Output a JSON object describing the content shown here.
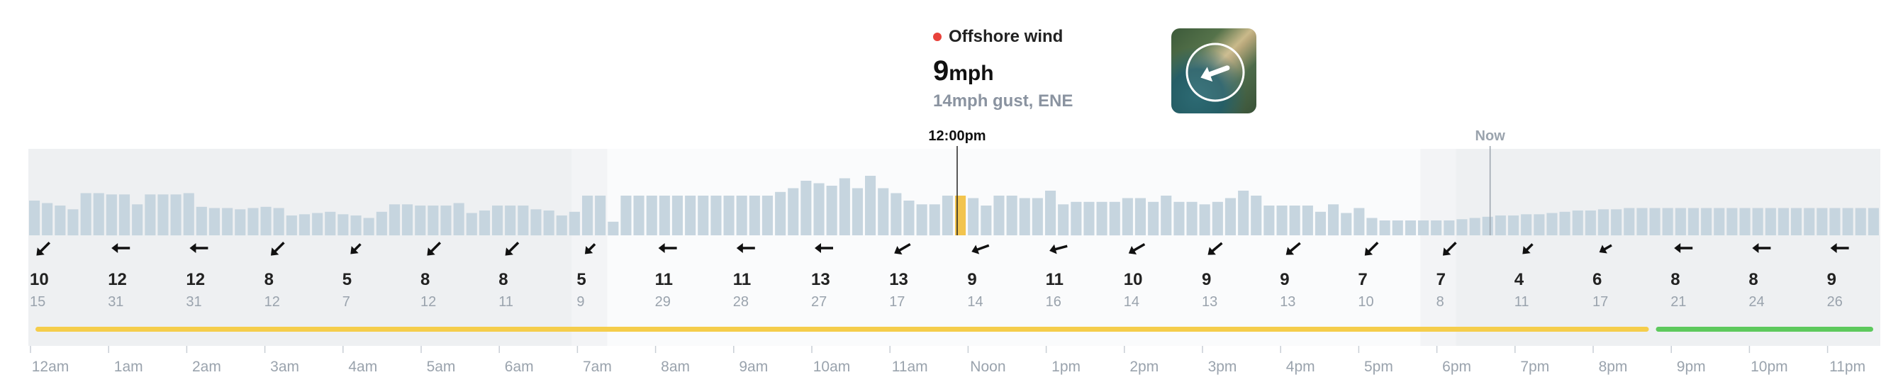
{
  "tooltip": {
    "title": "Offshore wind",
    "speed_value": "9",
    "speed_unit": "mph",
    "gust": "14mph gust, ENE",
    "status_color": "#e8423b"
  },
  "map_icon": "wind-direction-map-icon",
  "chart_data": {
    "type": "bar",
    "selected_label": "12:00pm",
    "now_label": "Now",
    "time_labels": [
      "12am",
      "1am",
      "2am",
      "3am",
      "4am",
      "5am",
      "6am",
      "7am",
      "8am",
      "9am",
      "10am",
      "11am",
      "Noon",
      "1pm",
      "2pm",
      "3pm",
      "4pm",
      "5pm",
      "6pm",
      "7pm",
      "8pm",
      "9pm",
      "10pm",
      "11pm"
    ],
    "wind_speed": [
      10,
      12,
      12,
      8,
      5,
      8,
      8,
      5,
      11,
      11,
      13,
      13,
      9,
      11,
      10,
      9,
      9,
      7,
      7,
      4,
      6,
      8,
      8,
      9
    ],
    "gust_speed": [
      15,
      31,
      31,
      12,
      7,
      12,
      11,
      9,
      29,
      28,
      27,
      17,
      14,
      16,
      14,
      13,
      13,
      10,
      8,
      11,
      17,
      21,
      24,
      26
    ],
    "direction_deg": [
      225,
      270,
      270,
      225,
      225,
      225,
      225,
      225,
      270,
      270,
      270,
      240,
      250,
      255,
      240,
      230,
      230,
      225,
      225,
      225,
      240,
      270,
      270,
      270
    ],
    "bar_values": [
      28,
      26,
      24,
      21,
      34,
      34,
      33,
      33,
      25,
      33,
      33,
      33,
      34,
      23,
      22,
      22,
      21,
      22,
      23,
      22,
      16,
      17,
      18,
      19,
      17,
      16,
      14,
      19,
      25,
      25,
      24,
      24,
      24,
      26,
      18,
      20,
      24,
      24,
      24,
      21,
      20,
      16,
      19,
      32,
      32,
      11,
      32,
      32,
      32,
      32,
      32,
      32,
      32,
      32,
      32,
      32,
      32,
      32,
      35,
      38,
      44,
      42,
      40,
      46,
      38,
      48,
      38,
      34,
      28,
      25,
      25,
      32,
      32,
      30,
      24,
      32,
      32,
      30,
      30,
      36,
      25,
      27,
      27,
      27,
      27,
      30,
      30,
      27,
      32,
      27,
      27,
      25,
      27,
      30,
      36,
      32,
      24,
      24,
      24,
      24,
      19,
      25,
      18,
      22,
      14,
      12,
      12,
      12,
      12,
      12,
      12,
      13,
      14,
      15,
      16,
      16,
      17,
      17,
      18,
      19,
      20,
      20,
      21,
      21,
      22,
      22,
      22,
      22,
      22,
      22,
      22,
      22,
      22,
      22,
      22,
      22,
      22,
      22,
      22,
      22,
      22,
      22,
      22,
      22
    ],
    "bar_color": "#c6d5df",
    "selected_bar_color": "#f2c44d",
    "rating_segments": [
      {
        "from_hour": 0,
        "to_hour": 21.0,
        "color": "#f5cd4b"
      },
      {
        "from_hour": 21.0,
        "to_hour": 24,
        "color": "#5dc95d"
      }
    ],
    "shaded_before_hour": 7.5,
    "shaded_after_hour": 18.5,
    "now_hour": 18.3,
    "selected_hour": 12
  }
}
